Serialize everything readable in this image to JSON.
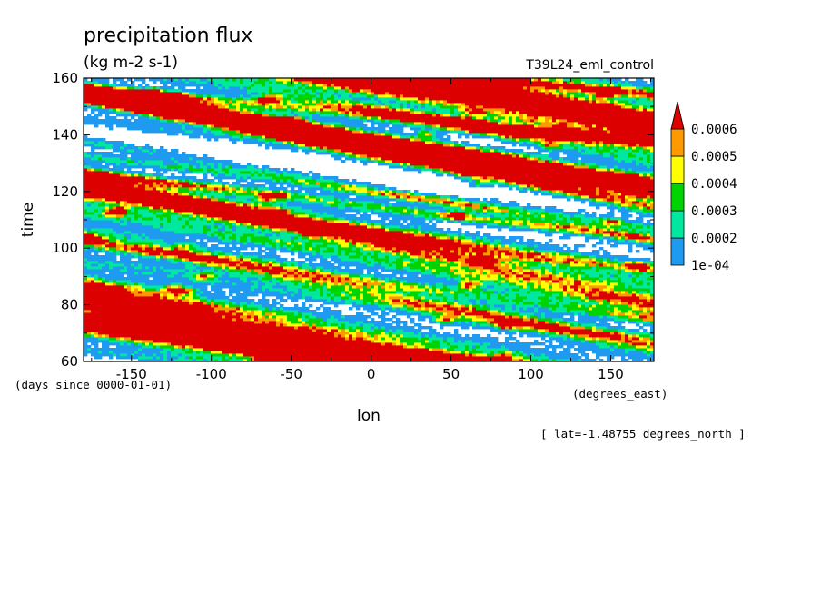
{
  "chart_data": {
    "type": "heatmap",
    "title": "precipitation flux",
    "units": "(kg m-2 s-1)",
    "run_label": "T39L24_eml_control",
    "xlabel": "lon",
    "x_units": "(degrees_east)",
    "ylabel": "time",
    "y_units": "(days since 0000-01-01)",
    "footer": "[ lat=-1.48755 degrees_north ]",
    "xlim": [
      -180,
      177
    ],
    "ylim": [
      60,
      160
    ],
    "x_ticks": [
      -150,
      -100,
      -50,
      0,
      50,
      100,
      150
    ],
    "x_tick_labels": [
      "-150",
      "-100",
      "-50",
      "0",
      "50",
      "100",
      "150"
    ],
    "y_ticks": [
      60,
      80,
      100,
      120,
      140,
      160
    ],
    "y_tick_labels": [
      "60",
      "80",
      "100",
      "120",
      "140",
      "160"
    ],
    "colorbar": {
      "levels": [
        0.0001,
        0.0002,
        0.0003,
        0.0004,
        0.0005,
        0.0006
      ],
      "level_labels": [
        "1e-04",
        "0.0002",
        "0.0003",
        "0.0004",
        "0.0005",
        "0.0006"
      ],
      "colors": [
        "#ffffff",
        "#1e9bf0",
        "#00e8a0",
        "#00d400",
        "#ffff00",
        "#ff9900",
        "#dd0000"
      ],
      "extend": "max"
    }
  }
}
